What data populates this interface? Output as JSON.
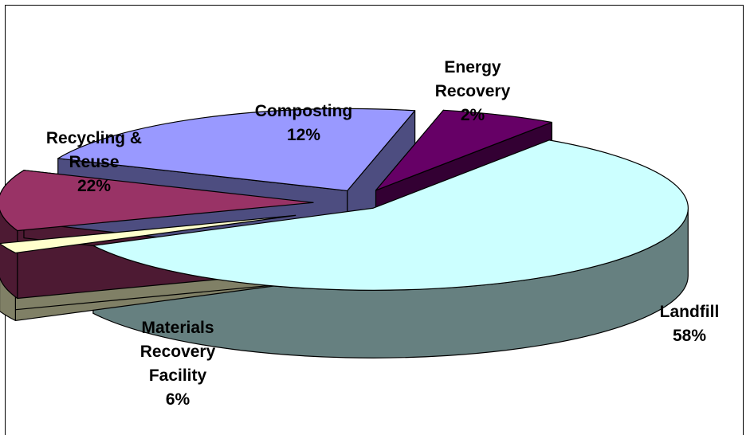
{
  "chart_data": {
    "type": "pie",
    "title": "",
    "style": "3d-exploded",
    "legend": "none",
    "slices": [
      {
        "name_lines": [
          "Landfill"
        ],
        "value": 58,
        "pct_label": "58%",
        "top_color": "#ccffff",
        "side_color": "#668080"
      },
      {
        "name_lines": [
          "Energy",
          "Recovery"
        ],
        "value": 2,
        "pct_label": "2%",
        "top_color": "#ffffcc",
        "side_color": "#808066"
      },
      {
        "name_lines": [
          "Composting"
        ],
        "value": 12,
        "pct_label": "12%",
        "top_color": "#993366",
        "side_color": "#4d1a33"
      },
      {
        "name_lines": [
          "Recycling &",
          "Reuse"
        ],
        "value": 22,
        "pct_label": "22%",
        "top_color": "#9999ff",
        "side_color": "#4d4d80"
      },
      {
        "name_lines": [
          "Materials",
          "Recovery",
          "Facility"
        ],
        "value": 6,
        "pct_label": "6%",
        "top_color": "#660066",
        "side_color": "#330033"
      }
    ]
  }
}
